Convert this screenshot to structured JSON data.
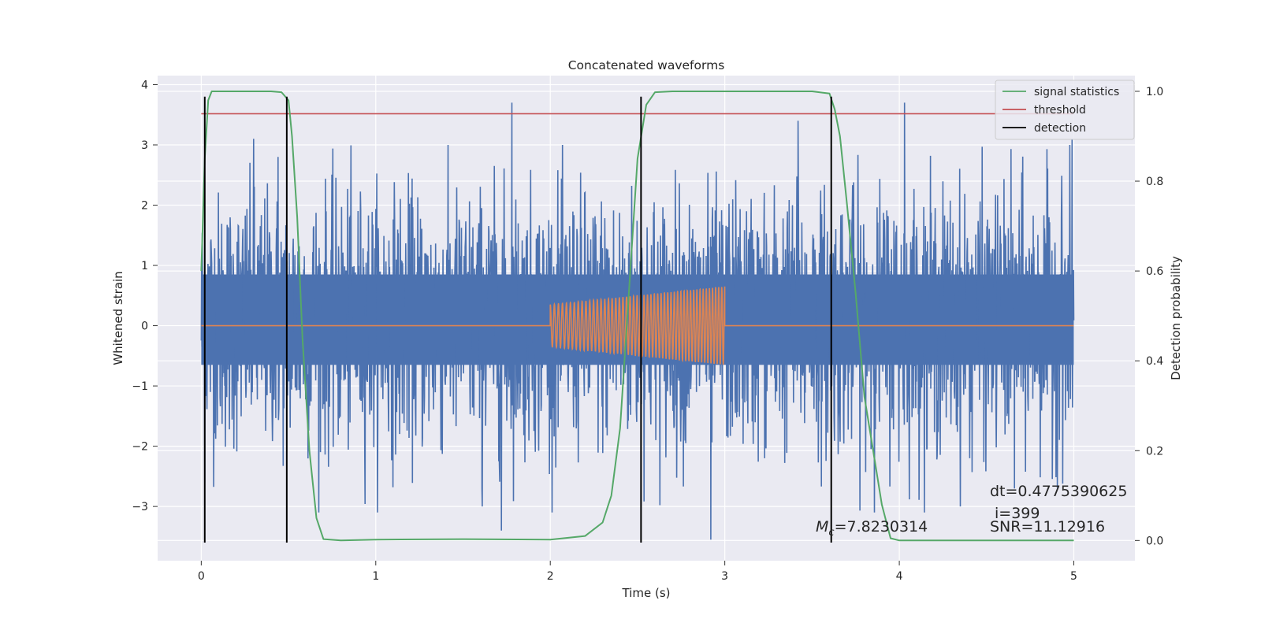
{
  "chart_data": {
    "type": "line",
    "title": "Concatenated waveforms",
    "xlabel": "Time (s)",
    "ylabel": "Whitened strain",
    "y2label": "Detection probability",
    "xlim": [
      -0.25,
      5.35
    ],
    "ylim": [
      -3.9,
      4.15
    ],
    "y2lim": [
      -0.045,
      1.035
    ],
    "x_ticks": [
      0,
      1,
      2,
      3,
      4,
      5
    ],
    "x_tick_labels": [
      "0",
      "1",
      "2",
      "3",
      "4",
      "5"
    ],
    "y_ticks": [
      -3,
      -2,
      -1,
      0,
      1,
      2,
      3,
      4
    ],
    "y_tick_labels": [
      "−3",
      "−2",
      "−1",
      "0",
      "1",
      "2",
      "3",
      "4"
    ],
    "y2_ticks": [
      0.0,
      0.2,
      0.4,
      0.6,
      0.8,
      1.0
    ],
    "y2_tick_labels": [
      "0.0",
      "0.2",
      "0.4",
      "0.6",
      "0.8",
      "1.0"
    ],
    "grid": true,
    "legend_position": "top-right",
    "colors": {
      "strain": "#4c72b0",
      "template": "#dd8452",
      "signal_statistics": "#55a868",
      "threshold": "#c44e52",
      "detection": "#000000",
      "background": "#eaeaf2",
      "grid": "#ffffff"
    },
    "series": [
      {
        "name": "signal statistics",
        "axis": "right",
        "x": [
          0.0,
          0.02,
          0.04,
          0.06,
          0.1,
          0.2,
          0.3,
          0.4,
          0.46,
          0.5,
          0.52,
          0.55,
          0.58,
          0.62,
          0.66,
          0.7,
          0.8,
          1.0,
          1.5,
          2.0,
          2.2,
          2.3,
          2.35,
          2.4,
          2.45,
          2.5,
          2.55,
          2.6,
          2.7,
          2.9,
          3.2,
          3.5,
          3.6,
          3.63,
          3.66,
          3.7,
          3.75,
          3.8,
          3.85,
          3.9,
          3.95,
          4.0,
          4.5,
          5.0
        ],
        "y": [
          0.6,
          0.85,
          0.98,
          1.0,
          1.0,
          1.0,
          1.0,
          1.0,
          0.998,
          0.98,
          0.9,
          0.72,
          0.45,
          0.2,
          0.05,
          0.003,
          0.0,
          0.002,
          0.003,
          0.002,
          0.01,
          0.04,
          0.1,
          0.25,
          0.55,
          0.85,
          0.97,
          0.998,
          1.0,
          1.0,
          1.0,
          1.0,
          0.995,
          0.96,
          0.9,
          0.75,
          0.55,
          0.32,
          0.2,
          0.08,
          0.005,
          0.0,
          0.0,
          0.0
        ]
      },
      {
        "name": "threshold",
        "axis": "right",
        "x": [
          0.0,
          5.0
        ],
        "y": [
          0.95,
          0.95
        ]
      },
      {
        "name": "detection",
        "axis": "left",
        "x": [
          0.02,
          0.49,
          2.52,
          3.61
        ],
        "y_range": [
          -3.6,
          3.8
        ]
      }
    ],
    "strain_noise": {
      "x_range": [
        0.0,
        5.0
      ],
      "dense_band": [
        -0.65,
        0.85
      ],
      "peaks": [
        {
          "x": 0.3,
          "y": 3.1
        },
        {
          "x": 0.44,
          "y": 2.8
        },
        {
          "x": 1.78,
          "y": 3.7
        },
        {
          "x": 3.42,
          "y": 3.4
        },
        {
          "x": 4.03,
          "y": 3.7
        },
        {
          "x": 4.99,
          "y": 3.1
        },
        {
          "x": 0.02,
          "y": -2.6
        },
        {
          "x": 1.72,
          "y": -3.4
        },
        {
          "x": 1.61,
          "y": -3.0
        },
        {
          "x": 2.92,
          "y": -3.55
        },
        {
          "x": 4.66,
          "y": -2.7
        }
      ]
    },
    "template_chirp": {
      "x_range": [
        2.0,
        3.0
      ],
      "amplitude_start": 0.35,
      "amplitude_end": 0.65,
      "cycles": 50
    },
    "annotations": {
      "dt": "dt=0.4775390625",
      "index": "i=399",
      "snr": "SNR=11.12916",
      "mc_symbol": "M",
      "mc_subscript": "c",
      "mc_value": "=7.8230314"
    }
  }
}
